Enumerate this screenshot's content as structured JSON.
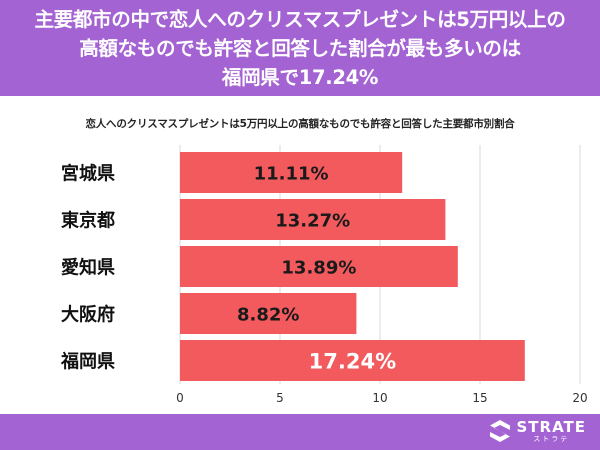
{
  "header": {
    "lines": [
      "主要都市の中で恋人へのクリスマスプレゼントは5万円以上の",
      "高額なものでも許容と回答した割合が最も多いのは",
      "福岡県で17.24%"
    ]
  },
  "chart_data": {
    "type": "bar",
    "orientation": "horizontal",
    "title": "恋人へのクリスマスプレゼントは5万円以上の高額なものでも許容と回答した主要都市別割合",
    "categories": [
      "宮城県",
      "東京都",
      "愛知県",
      "大阪府",
      "福岡県"
    ],
    "values": [
      11.11,
      13.27,
      13.89,
      8.82,
      17.24
    ],
    "value_labels": [
      "11.11%",
      "13.27%",
      "13.89%",
      "8.82%",
      "17.24%"
    ],
    "xlim": [
      0,
      20
    ],
    "xticks": [
      "0",
      "5",
      "10",
      "15",
      "20"
    ],
    "grid": true,
    "bar_color": "#f25a5e",
    "highlight_index": 4
  },
  "logo": {
    "name": "STRATE",
    "sub": "ストラテ",
    "icon": "strate-s-icon"
  },
  "colors": {
    "header_bg": "#a463d3",
    "footer_bg": "#a463d3",
    "bar": "#f25a5e"
  }
}
